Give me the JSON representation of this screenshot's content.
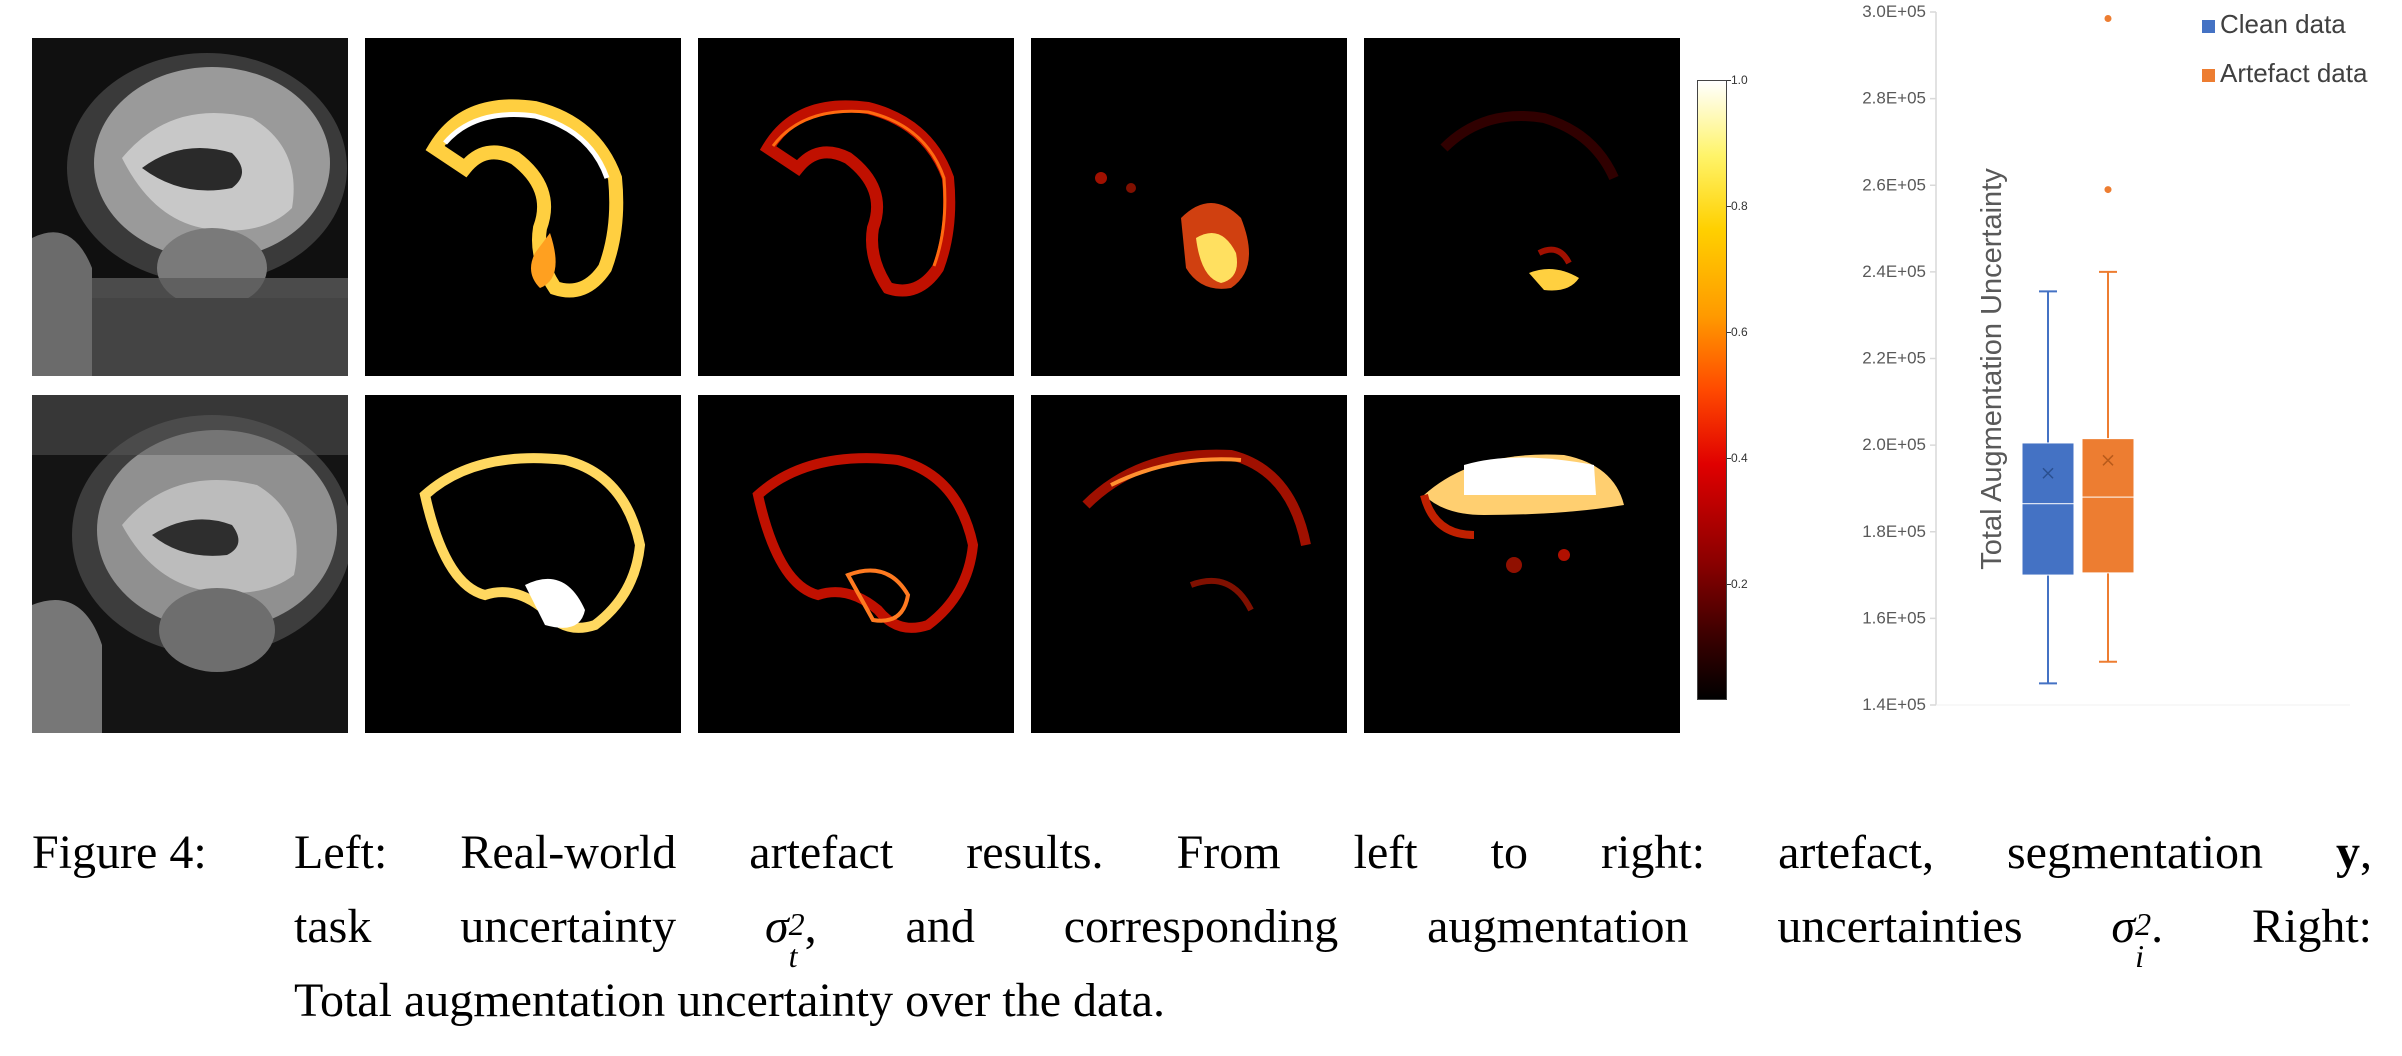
{
  "figure_label": "Figure 4:",
  "caption": {
    "line1_a": "Left: Real-world artefact results. From left to right: artefact, segmentation ",
    "line1_y": "y",
    "line1_b": ",",
    "line2_a": "task uncertainty ",
    "sigma": "σ",
    "sub_t": "t",
    "sup_2": "2",
    "line2_b": ", and corresponding augmentation uncertainties ",
    "sub_i": "i",
    "line2_c": ". Right:",
    "line3": "Total augmentation uncertainty over the data."
  },
  "colorbar": {
    "ticks": [
      "1.0",
      "0.8",
      "0.6",
      "0.4",
      "0.2"
    ],
    "colormap": "hot"
  },
  "chart_data": {
    "type": "box",
    "title": "",
    "ylabel": "Total Augmentation Uncertainty",
    "ylim": [
      140000,
      300000
    ],
    "y_ticks": [
      "1.4E+05",
      "1.6E+05",
      "1.8E+05",
      "2.0E+05",
      "2.2E+05",
      "2.4E+05",
      "2.6E+05",
      "2.8E+05",
      "3.0E+05"
    ],
    "legend_position": "top-right",
    "series": [
      {
        "name": "Clean data",
        "color": "#4472C4",
        "min": 145000,
        "q1": 170000,
        "median": 186500,
        "q3": 200500,
        "max": 235500,
        "mean": 193500,
        "outliers": []
      },
      {
        "name": "Artefact data",
        "color": "#ED7D31",
        "min": 150000,
        "q1": 170500,
        "median": 188000,
        "q3": 201500,
        "max": 240000,
        "mean": 196500,
        "outliers": [
          259000,
          298500
        ]
      }
    ]
  }
}
